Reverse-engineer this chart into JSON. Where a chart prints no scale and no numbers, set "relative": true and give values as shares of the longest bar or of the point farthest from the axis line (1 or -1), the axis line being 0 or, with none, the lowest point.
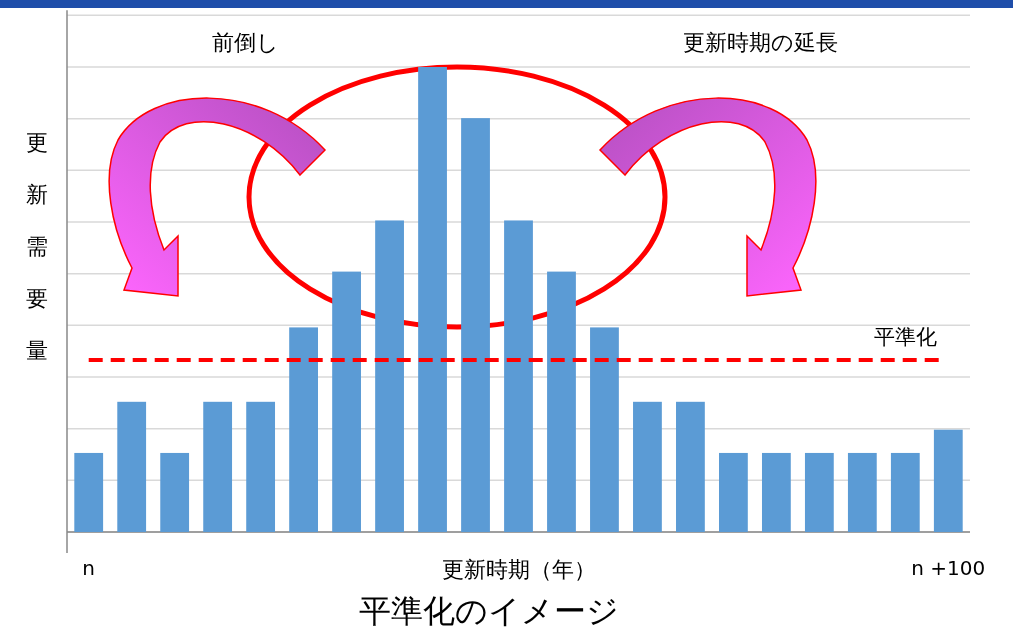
{
  "chart_data": {
    "type": "bar",
    "title": "平準化のイメージ",
    "xlabel": "更新時期（年）",
    "ylabel": "更新需要量",
    "annotations": [
      "前倒し",
      "更新時期の延長"
    ],
    "categories": [
      "n",
      null,
      null,
      null,
      null,
      null,
      null,
      null,
      null,
      null,
      null,
      null,
      null,
      null,
      null,
      null,
      null,
      null,
      null,
      null,
      "n +100"
    ],
    "values": [
      0.17,
      0.28,
      0.17,
      0.28,
      0.28,
      0.44,
      0.56,
      0.67,
      1,
      0.89,
      0.67,
      0.56,
      0.44,
      0.28,
      0.28,
      0.17,
      0.17,
      0.17,
      0.17,
      0.17,
      0.22
    ],
    "color": "#5b9bd5",
    "relative": true,
    "grid": "y",
    "ref_lines": [
      {
        "axis": "y",
        "value": 0.37,
        "label": "平準化",
        "color": "#ff0000",
        "line_style": "dashed"
      }
    ]
  }
}
